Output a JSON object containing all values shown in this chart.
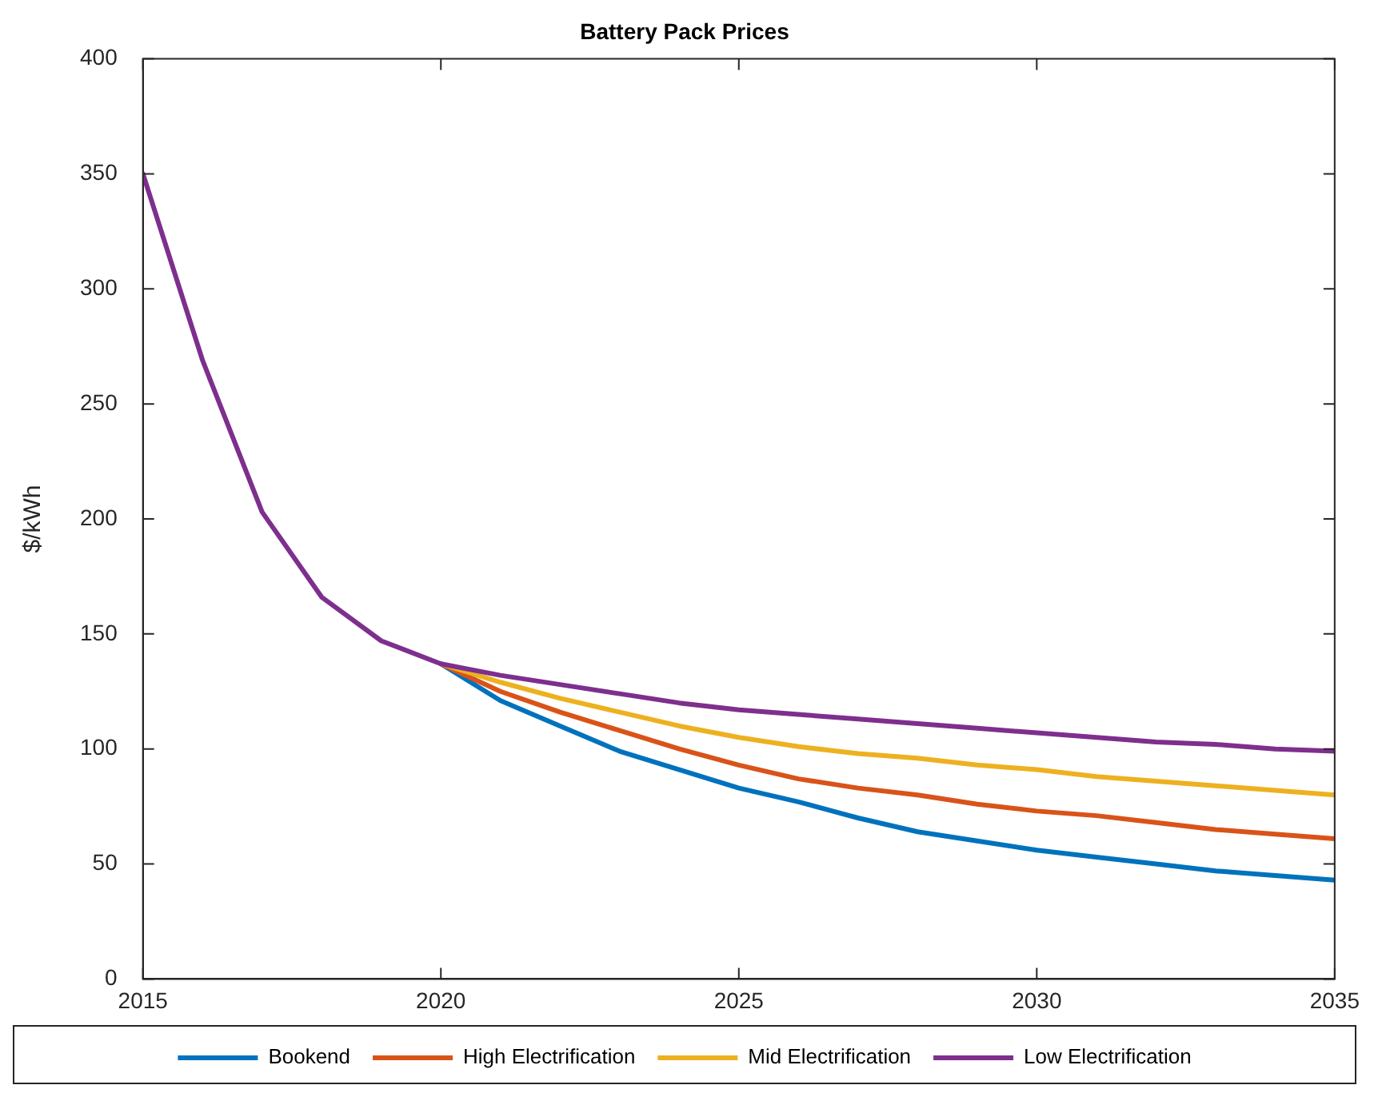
{
  "chart_data": {
    "type": "line",
    "title": "Battery Pack Prices",
    "ylabel": "$/kWh",
    "x": [
      2015,
      2016,
      2017,
      2018,
      2019,
      2020,
      2021,
      2022,
      2023,
      2024,
      2025,
      2026,
      2027,
      2028,
      2029,
      2030,
      2031,
      2032,
      2033,
      2034,
      2035
    ],
    "series": [
      {
        "name": "Bookend",
        "color": "#0072bd",
        "values": [
          null,
          null,
          null,
          null,
          null,
          137,
          121,
          110,
          99,
          91,
          83,
          77,
          70,
          64,
          60,
          56,
          53,
          50,
          47,
          45,
          43
        ]
      },
      {
        "name": "High Electrification",
        "color": "#d95319",
        "values": [
          null,
          null,
          null,
          null,
          null,
          137,
          125,
          116,
          108,
          100,
          93,
          87,
          83,
          80,
          76,
          73,
          71,
          68,
          65,
          63,
          61
        ]
      },
      {
        "name": "Mid Electrification",
        "color": "#edb120",
        "values": [
          null,
          null,
          null,
          null,
          null,
          137,
          129,
          122,
          116,
          110,
          105,
          101,
          98,
          96,
          93,
          91,
          88,
          86,
          84,
          82,
          80
        ]
      },
      {
        "name": "Low Electrification",
        "color": "#7e2f8e",
        "values": [
          350,
          269,
          203,
          166,
          147,
          137,
          132,
          128,
          124,
          120,
          117,
          115,
          113,
          111,
          109,
          107,
          105,
          103,
          102,
          100,
          99
        ]
      }
    ],
    "xlim": [
      2015,
      2035
    ],
    "xticks": [
      2015,
      2020,
      2025,
      2030,
      2035
    ],
    "ylim": [
      0,
      400
    ],
    "yticks": [
      0,
      50,
      100,
      150,
      200,
      250,
      300,
      350,
      400
    ],
    "grid": false,
    "legend": "bottom",
    "marker": "none",
    "line_style": "solid"
  }
}
